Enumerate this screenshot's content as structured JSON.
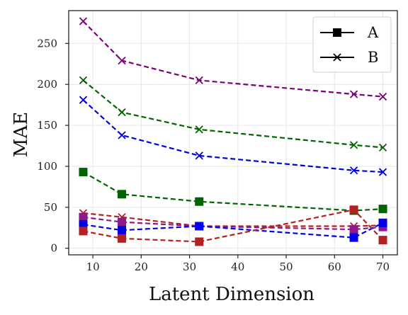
{
  "chart_data": {
    "type": "line",
    "xlabel": "Latent Dimension",
    "ylabel": "MAE",
    "xlim": [
      5,
      73
    ],
    "ylim": [
      -8,
      290
    ],
    "xticks": [
      10,
      20,
      30,
      40,
      50,
      60,
      70
    ],
    "yticks": [
      0,
      50,
      100,
      150,
      200,
      250
    ],
    "grid": true,
    "legend": {
      "placement": "top-right",
      "entries": [
        {
          "label": "A",
          "marker": "square"
        },
        {
          "label": "B",
          "marker": "x"
        }
      ]
    },
    "x": [
      8,
      16,
      32,
      64,
      70
    ],
    "series": [
      {
        "group": "B",
        "marker": "x",
        "color": "#7b007b",
        "values": [
          277,
          229,
          205,
          188,
          185
        ]
      },
      {
        "group": "B",
        "marker": "x",
        "color": "#006400",
        "values": [
          205,
          166,
          145,
          126,
          123
        ]
      },
      {
        "group": "B",
        "marker": "x",
        "color": "#0000dd",
        "values": [
          181,
          138,
          113,
          95,
          93
        ]
      },
      {
        "group": "A",
        "marker": "square",
        "color": "#006400",
        "values": [
          93,
          66,
          57,
          46,
          48
        ]
      },
      {
        "group": "B",
        "marker": "x",
        "color": "#b22222",
        "values": [
          43,
          38,
          27,
          27,
          28
        ]
      },
      {
        "group": "A",
        "marker": "square",
        "color": "#8b1a8b",
        "values": [
          38,
          32,
          27,
          23,
          26
        ]
      },
      {
        "group": "A",
        "marker": "square",
        "color": "#0000ee",
        "values": [
          29,
          22,
          27,
          13,
          31
        ]
      },
      {
        "group": "A",
        "marker": "square",
        "color": "#b22222",
        "values": [
          21,
          12,
          8,
          47,
          10
        ]
      }
    ]
  }
}
